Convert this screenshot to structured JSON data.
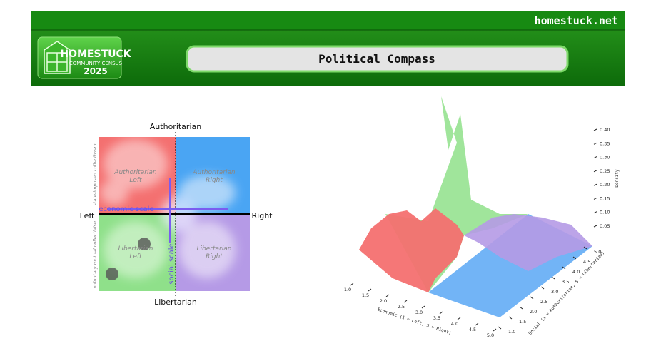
{
  "header": {
    "site": "homestuck.net",
    "logo": [
      "HOMESTUCK",
      "COMMUNITY CENSUS",
      "2025"
    ],
    "title": "Political Compass"
  },
  "compass": {
    "top": "Authoritarian",
    "bottom": "Libertarian",
    "left": "Left",
    "right": "Right",
    "quadrants": [
      [
        "Authoritarian",
        "Left"
      ],
      [
        "Authoritarian",
        "Right"
      ],
      [
        "Libertarian",
        "Left"
      ],
      [
        "Libertarian",
        "Right"
      ]
    ],
    "economic_scale": "economic scale",
    "social_scale": "social scale",
    "side_top": "state-imposed collectivism",
    "side_bottom": "voluntary mutual collectivism"
  },
  "surface": {
    "z_label": "Density",
    "z_ticks": [
      "0.40",
      "0.35",
      "0.30",
      "0.25",
      "0.20",
      "0.15",
      "0.10",
      "0.05"
    ],
    "x_label": "Economic (1 = Left, 5 = Right)",
    "x_ticks": [
      "1.0",
      "1.5",
      "2.0",
      "2.5",
      "3.0",
      "3.5",
      "4.0",
      "4.5",
      "5.0"
    ],
    "y_label": "Social (1 = Authoritarian, 5 = Libertarian)",
    "y_ticks": [
      "1.0",
      "1.5",
      "2.0",
      "2.5",
      "3.0",
      "3.5",
      "4.0",
      "4.5",
      "5.0"
    ]
  }
}
